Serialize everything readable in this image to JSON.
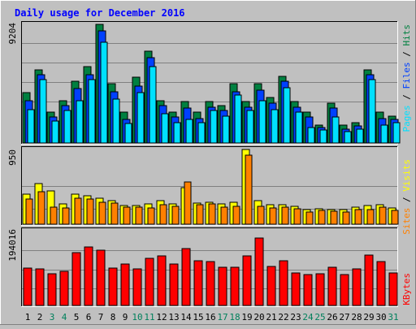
{
  "title": "Daily usage for December 2016",
  "colors": {
    "hits": "#008040",
    "files": "#0040ff",
    "pages": "#00e0ff",
    "visits": "#ffff00",
    "sites": "#ff8000",
    "kbytes": "#ff0000",
    "weekend_label": "#00805c",
    "weekday_label": "#000000",
    "title": "#0000ff"
  },
  "chart_data": [
    {
      "type": "bar",
      "panel": "hits-files-pages",
      "categories": [
        "1",
        "2",
        "3",
        "4",
        "5",
        "6",
        "7",
        "8",
        "9",
        "10",
        "11",
        "12",
        "13",
        "14",
        "15",
        "16",
        "17",
        "18",
        "19",
        "20",
        "21",
        "22",
        "23",
        "24",
        "25",
        "26",
        "27",
        "28",
        "29",
        "30",
        "31"
      ],
      "ymax_label": "9204",
      "ylim": [
        0,
        9204
      ],
      "right_label": {
        "pages": "Pages",
        "files": "Files",
        "hits": "Hits",
        "sep": " / "
      },
      "series": [
        {
          "name": "Hits",
          "key": "hits",
          "values": [
            3900,
            5700,
            2400,
            3300,
            4800,
            5900,
            9204,
            4600,
            2400,
            5100,
            7100,
            3300,
            2400,
            3200,
            2400,
            3200,
            2900,
            4600,
            3200,
            4600,
            3500,
            5200,
            3200,
            2400,
            1400,
            3100,
            1400,
            1600,
            5700,
            2400,
            2100
          ]
        },
        {
          "name": "Files",
          "key": "files",
          "values": [
            3300,
            5300,
            2000,
            2900,
            4200,
            5300,
            8700,
            4000,
            1800,
            4400,
            6600,
            2900,
            2000,
            2700,
            1900,
            2800,
            2500,
            4000,
            2800,
            4100,
            3100,
            4800,
            2800,
            2000,
            1200,
            2700,
            1100,
            1300,
            5300,
            1900,
            1800
          ]
        },
        {
          "name": "Pages",
          "key": "pages",
          "values": [
            2600,
            4900,
            1700,
            2500,
            3300,
            4900,
            7800,
            3400,
            1500,
            3900,
            5900,
            2300,
            1600,
            1800,
            1600,
            2500,
            2100,
            3700,
            2500,
            3300,
            2600,
            4300,
            2400,
            1200,
            1000,
            2000,
            900,
            1100,
            4900,
            1400,
            1600
          ]
        }
      ]
    },
    {
      "type": "bar",
      "panel": "visits-sites",
      "categories": [
        "1",
        "2",
        "3",
        "4",
        "5",
        "6",
        "7",
        "8",
        "9",
        "10",
        "11",
        "12",
        "13",
        "14",
        "15",
        "16",
        "17",
        "18",
        "19",
        "20",
        "21",
        "22",
        "23",
        "24",
        "25",
        "26",
        "27",
        "28",
        "29",
        "30",
        "31"
      ],
      "ymax_label": "950",
      "ylim": [
        0,
        950
      ],
      "right_label": {
        "sites": "Sites",
        "visits": "Visits",
        "sep": " / "
      },
      "series": [
        {
          "name": "Visits",
          "key": "visits",
          "values": [
            380,
            520,
            420,
            260,
            380,
            360,
            330,
            300,
            240,
            240,
            260,
            300,
            260,
            460,
            270,
            280,
            260,
            280,
            950,
            300,
            250,
            250,
            230,
            190,
            200,
            190,
            190,
            220,
            240,
            250,
            210
          ]
        },
        {
          "name": "Sites",
          "key": "sites",
          "values": [
            320,
            410,
            220,
            210,
            330,
            320,
            280,
            270,
            220,
            220,
            210,
            250,
            230,
            540,
            250,
            260,
            220,
            230,
            880,
            230,
            210,
            220,
            200,
            160,
            180,
            170,
            160,
            190,
            190,
            220,
            180
          ]
        }
      ]
    },
    {
      "type": "bar",
      "panel": "kbytes",
      "categories": [
        "1",
        "2",
        "3",
        "4",
        "5",
        "6",
        "7",
        "8",
        "9",
        "10",
        "11",
        "12",
        "13",
        "14",
        "15",
        "16",
        "17",
        "18",
        "19",
        "20",
        "21",
        "22",
        "23",
        "24",
        "25",
        "26",
        "27",
        "28",
        "29",
        "30",
        "31"
      ],
      "ymax_label": "194016",
      "ylim": [
        0,
        194016
      ],
      "right_label": {
        "kbytes": "KBytes"
      },
      "series": [
        {
          "name": "KBytes",
          "key": "kbytes",
          "values": [
            97000,
            95000,
            82000,
            88000,
            137000,
            152000,
            144000,
            96000,
            107000,
            94000,
            122000,
            129000,
            107000,
            147000,
            116000,
            113000,
            100000,
            99000,
            129000,
            176000,
            102000,
            117000,
            84000,
            81000,
            83000,
            99000,
            81000,
            94000,
            131000,
            114000,
            85000
          ]
        }
      ]
    }
  ],
  "x_labels": {
    "values": [
      "1",
      "2",
      "3",
      "4",
      "5",
      "6",
      "7",
      "8",
      "9",
      "10",
      "11",
      "12",
      "13",
      "14",
      "15",
      "16",
      "17",
      "18",
      "19",
      "20",
      "21",
      "22",
      "23",
      "24",
      "25",
      "26",
      "27",
      "28",
      "29",
      "30",
      "31"
    ],
    "weekend": [
      3,
      4,
      10,
      11,
      17,
      18,
      24,
      25,
      31
    ]
  }
}
